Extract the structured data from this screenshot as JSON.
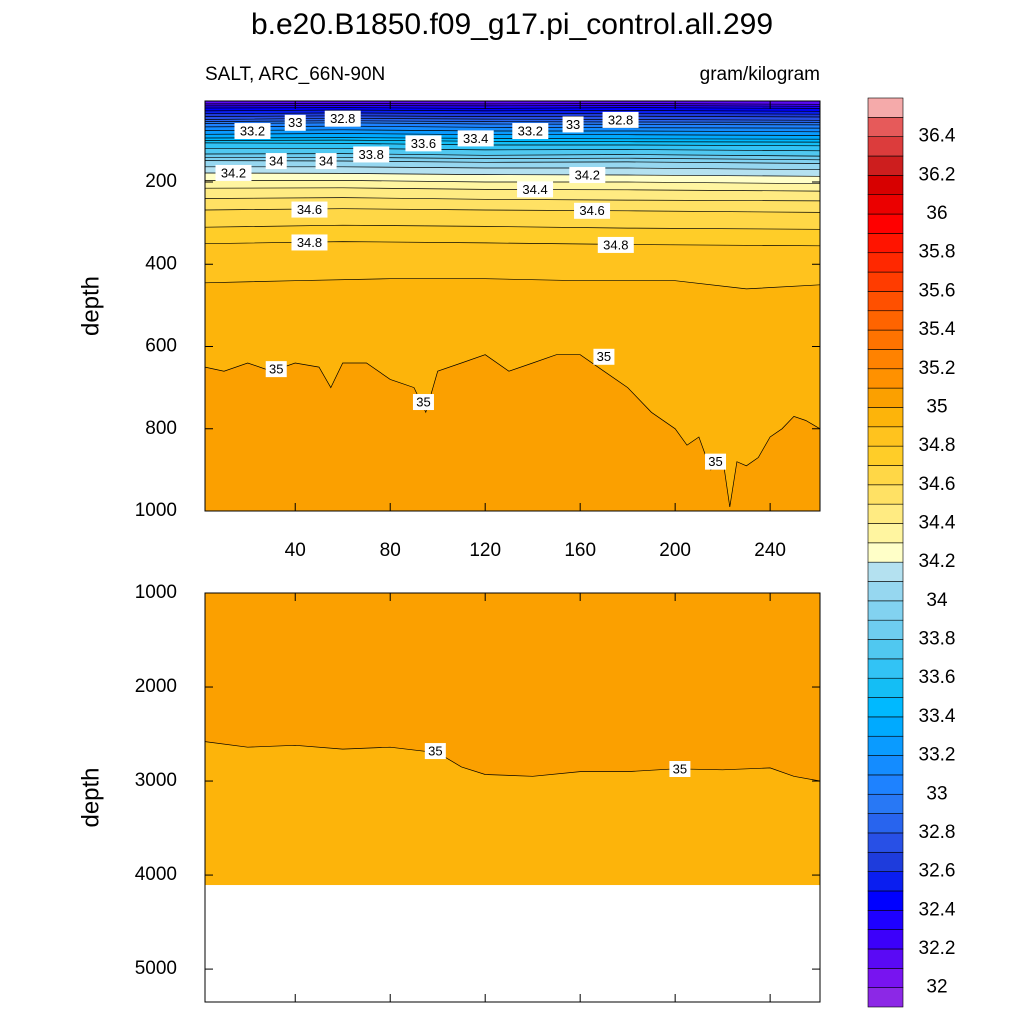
{
  "header": {
    "title": "b.e20.B1850.f09_g17.pi_control.all.299",
    "subtitle_left": "SALT, ARC_66N-90N",
    "subtitle_right": "gram/kilogram"
  },
  "colorbar": {
    "levels": [
      32,
      32.1,
      32.2,
      32.3,
      32.4,
      32.5,
      32.6,
      32.7,
      32.8,
      32.9,
      33,
      33.1,
      33.2,
      33.3,
      33.4,
      33.5,
      33.6,
      33.7,
      33.8,
      33.9,
      34,
      34.1,
      34.2,
      34.3,
      34.4,
      34.5,
      34.6,
      34.7,
      34.8,
      34.9,
      35,
      35.1,
      35.2,
      35.3,
      35.4,
      35.5,
      35.6,
      35.7,
      35.8,
      35.9,
      36,
      36.1,
      36.2,
      36.3,
      36.4,
      36.5
    ],
    "colors": [
      "#8c28e6",
      "#7814f0",
      "#5a0af5",
      "#3c00fa",
      "#1e00ff",
      "#0000ff",
      "#0a1ef0",
      "#1e3cdc",
      "#2850e6",
      "#2864ee",
      "#2878f5",
      "#1e82ff",
      "#148cff",
      "#0a9bff",
      "#00aaff",
      "#00b9ff",
      "#14bef5",
      "#32c3f5",
      "#50c8f0",
      "#6ecdf0",
      "#82d2f0",
      "#96d7f0",
      "#b4e1f0",
      "#ffffc8",
      "#fff5a0",
      "#ffeb82",
      "#ffe164",
      "#ffd746",
      "#ffcd28",
      "#ffc31e",
      "#fdb40a",
      "#fba000",
      "#ff9100",
      "#ff8200",
      "#ff7300",
      "#ff6400",
      "#ff5000",
      "#ff3c00",
      "#ff2800",
      "#ff1400",
      "#ff0000",
      "#eb0000",
      "#d70000",
      "#cd1e1e",
      "#dc3c3c",
      "#e65a5a",
      "#f5aaaa"
    ],
    "labels": [
      32,
      32.2,
      32.4,
      32.6,
      32.8,
      33,
      33.2,
      33.4,
      33.6,
      33.8,
      34,
      34.2,
      34.4,
      34.6,
      34.8,
      35,
      35.2,
      35.4,
      35.6,
      35.8,
      36,
      36.2,
      36.4
    ]
  },
  "chart_data": [
    {
      "type": "contour",
      "ylabel": "depth",
      "xlim": [
        2,
        261
      ],
      "ylim": [
        3,
        1000
      ],
      "y_reversed": true,
      "xticks": [
        40,
        80,
        120,
        160,
        200,
        240
      ],
      "x_tick_labels": true,
      "yticks": [
        200,
        400,
        600,
        800,
        1000
      ],
      "increases_downward": true,
      "contours": [
        {
          "level": 32.2,
          "x": [
            2,
            60,
            120,
            180,
            261
          ],
          "depth": [
            10,
            9,
            10,
            9,
            11
          ]
        },
        {
          "level": 32.3,
          "x": [
            2,
            60,
            120,
            180,
            261
          ],
          "depth": [
            15,
            14,
            15,
            14,
            16
          ]
        },
        {
          "level": 32.4,
          "x": [
            2,
            60,
            120,
            180,
            261
          ],
          "depth": [
            20,
            19,
            21,
            19,
            21
          ]
        },
        {
          "level": 32.5,
          "x": [
            2,
            60,
            120,
            180,
            261
          ],
          "depth": [
            27,
            25,
            27,
            26,
            28
          ]
        },
        {
          "level": 32.6,
          "x": [
            2,
            60,
            120,
            180,
            261
          ],
          "depth": [
            34,
            32,
            34,
            33,
            35
          ]
        },
        {
          "level": 32.7,
          "x": [
            2,
            60,
            120,
            180,
            261
          ],
          "depth": [
            41,
            39,
            41,
            40,
            42
          ]
        },
        {
          "level": 32.8,
          "x": [
            2,
            60,
            120,
            180,
            261
          ],
          "depth": [
            48,
            45,
            47,
            48,
            50
          ]
        },
        {
          "level": 32.9,
          "x": [
            2,
            60,
            120,
            180,
            261
          ],
          "depth": [
            53,
            51,
            53,
            54,
            55
          ]
        },
        {
          "level": 33,
          "x": [
            2,
            60,
            120,
            180,
            261
          ],
          "depth": [
            58,
            56,
            59,
            60,
            61
          ]
        },
        {
          "level": 33.1,
          "x": [
            2,
            60,
            120,
            180,
            261
          ],
          "depth": [
            66,
            64,
            67,
            68,
            69
          ]
        },
        {
          "level": 33.2,
          "x": [
            2,
            60,
            120,
            180,
            261
          ],
          "depth": [
            75,
            73,
            76,
            76,
            78
          ]
        },
        {
          "level": 33.3,
          "x": [
            2,
            60,
            120,
            180,
            261
          ],
          "depth": [
            84,
            82,
            85,
            85,
            87
          ]
        },
        {
          "level": 33.4,
          "x": [
            2,
            60,
            120,
            180,
            261
          ],
          "depth": [
            93,
            92,
            94,
            95,
            96
          ]
        },
        {
          "level": 33.5,
          "x": [
            2,
            60,
            120,
            180,
            261
          ],
          "depth": [
            99,
            98,
            101,
            102,
            103
          ]
        },
        {
          "level": 33.6,
          "x": [
            2,
            60,
            120,
            180,
            261
          ],
          "depth": [
            105,
            106,
            110,
            110,
            112
          ]
        },
        {
          "level": 33.7,
          "x": [
            2,
            60,
            120,
            180,
            261
          ],
          "depth": [
            118,
            118,
            122,
            121,
            124
          ]
        },
        {
          "level": 33.8,
          "x": [
            2,
            60,
            120,
            180,
            261
          ],
          "depth": [
            132,
            131,
            135,
            133,
            137
          ]
        },
        {
          "level": 33.9,
          "x": [
            2,
            60,
            120,
            180,
            261
          ],
          "depth": [
            140,
            140,
            143,
            142,
            146
          ]
        },
        {
          "level": 34,
          "x": [
            2,
            60,
            120,
            180,
            261
          ],
          "depth": [
            148,
            149,
            152,
            151,
            155
          ]
        },
        {
          "level": 34.1,
          "x": [
            2,
            60,
            120,
            180,
            261
          ],
          "depth": [
            163,
            163,
            166,
            166,
            170
          ]
        },
        {
          "level": 34.2,
          "x": [
            2,
            60,
            120,
            180,
            261
          ],
          "depth": [
            178,
            179,
            182,
            183,
            186
          ]
        },
        {
          "level": 34.3,
          "x": [
            2,
            60,
            120,
            180,
            261
          ],
          "depth": [
            196,
            196,
            200,
            200,
            204
          ]
        },
        {
          "level": 34.4,
          "x": [
            2,
            60,
            120,
            180,
            261
          ],
          "depth": [
            215,
            214,
            218,
            219,
            222
          ]
        },
        {
          "level": 34.5,
          "x": [
            2,
            60,
            120,
            180,
            261
          ],
          "depth": [
            240,
            238,
            242,
            244,
            246
          ]
        },
        {
          "level": 34.6,
          "x": [
            2,
            60,
            120,
            180,
            261
          ],
          "depth": [
            268,
            265,
            268,
            270,
            274
          ]
        },
        {
          "level": 34.7,
          "x": [
            2,
            60,
            120,
            180,
            261
          ],
          "depth": [
            310,
            305,
            308,
            312,
            315
          ]
        },
        {
          "level": 34.8,
          "x": [
            2,
            60,
            120,
            180,
            261
          ],
          "depth": [
            350,
            345,
            348,
            352,
            355
          ]
        },
        {
          "level": 34.9,
          "x": [
            2,
            40,
            80,
            120,
            160,
            200,
            230,
            261
          ],
          "depth": [
            445,
            440,
            435,
            435,
            440,
            440,
            460,
            450
          ]
        },
        {
          "level": 35,
          "x": [
            2,
            10,
            20,
            30,
            40,
            50,
            55,
            60,
            70,
            80,
            90,
            95,
            100,
            110,
            120,
            130,
            140,
            150,
            160,
            170,
            180,
            190,
            200,
            205,
            210,
            215,
            220,
            223,
            226,
            230,
            235,
            240,
            245,
            250,
            255,
            261
          ],
          "depth": [
            650,
            660,
            640,
            660,
            640,
            650,
            700,
            640,
            640,
            680,
            700,
            760,
            660,
            640,
            620,
            660,
            640,
            620,
            620,
            660,
            700,
            760,
            800,
            840,
            820,
            900,
            870,
            990,
            880,
            890,
            870,
            820,
            800,
            770,
            780,
            800
          ]
        }
      ],
      "contour_labels": [
        {
          "value": 33.2,
          "x": 22,
          "depth": 76
        },
        {
          "value": 33,
          "x": 40,
          "depth": 56
        },
        {
          "value": 32.8,
          "x": 60,
          "depth": 46
        },
        {
          "value": 33.6,
          "x": 94,
          "depth": 106
        },
        {
          "value": 33.4,
          "x": 116,
          "depth": 94
        },
        {
          "value": 33.2,
          "x": 139,
          "depth": 76
        },
        {
          "value": 33,
          "x": 157,
          "depth": 60
        },
        {
          "value": 32.8,
          "x": 177,
          "depth": 49
        },
        {
          "value": 34,
          "x": 32,
          "depth": 149
        },
        {
          "value": 34,
          "x": 53,
          "depth": 149
        },
        {
          "value": 33.8,
          "x": 72,
          "depth": 133
        },
        {
          "value": 34.2,
          "x": 14,
          "depth": 178
        },
        {
          "value": 34.4,
          "x": 141,
          "depth": 218
        },
        {
          "value": 34.2,
          "x": 163,
          "depth": 183
        },
        {
          "value": 34.6,
          "x": 46,
          "depth": 267
        },
        {
          "value": 34.6,
          "x": 165,
          "depth": 270
        },
        {
          "value": 34.8,
          "x": 46,
          "depth": 347
        },
        {
          "value": 34.8,
          "x": 175,
          "depth": 353
        },
        {
          "value": 35,
          "x": 32,
          "depth": 655
        },
        {
          "value": 35,
          "x": 94,
          "depth": 735
        },
        {
          "value": 35,
          "x": 170,
          "depth": 625
        },
        {
          "value": 35,
          "x": 217,
          "depth": 880
        }
      ]
    },
    {
      "type": "contour",
      "ylabel": "depth",
      "xlim": [
        2,
        261
      ],
      "ylim": [
        1000,
        5350
      ],
      "y_reversed": true,
      "xticks": [
        40,
        80,
        120,
        160,
        200,
        240
      ],
      "x_tick_labels": false,
      "yticks": [
        1000,
        2000,
        3000,
        4000,
        5000
      ],
      "increases_downward": false,
      "data_max_depth": 4106,
      "contours": [
        {
          "level": 35,
          "x": [
            2,
            20,
            40,
            60,
            80,
            100,
            110,
            120,
            140,
            160,
            180,
            200,
            220,
            240,
            250,
            261
          ],
          "depth": [
            2580,
            2640,
            2620,
            2660,
            2640,
            2700,
            2850,
            2930,
            2950,
            2900,
            2900,
            2870,
            2880,
            2860,
            2950,
            3000
          ]
        }
      ],
      "contour_labels": [
        {
          "value": 35,
          "x": 99,
          "depth": 2681
        },
        {
          "value": 35,
          "x": 202,
          "depth": 2872
        }
      ]
    }
  ]
}
